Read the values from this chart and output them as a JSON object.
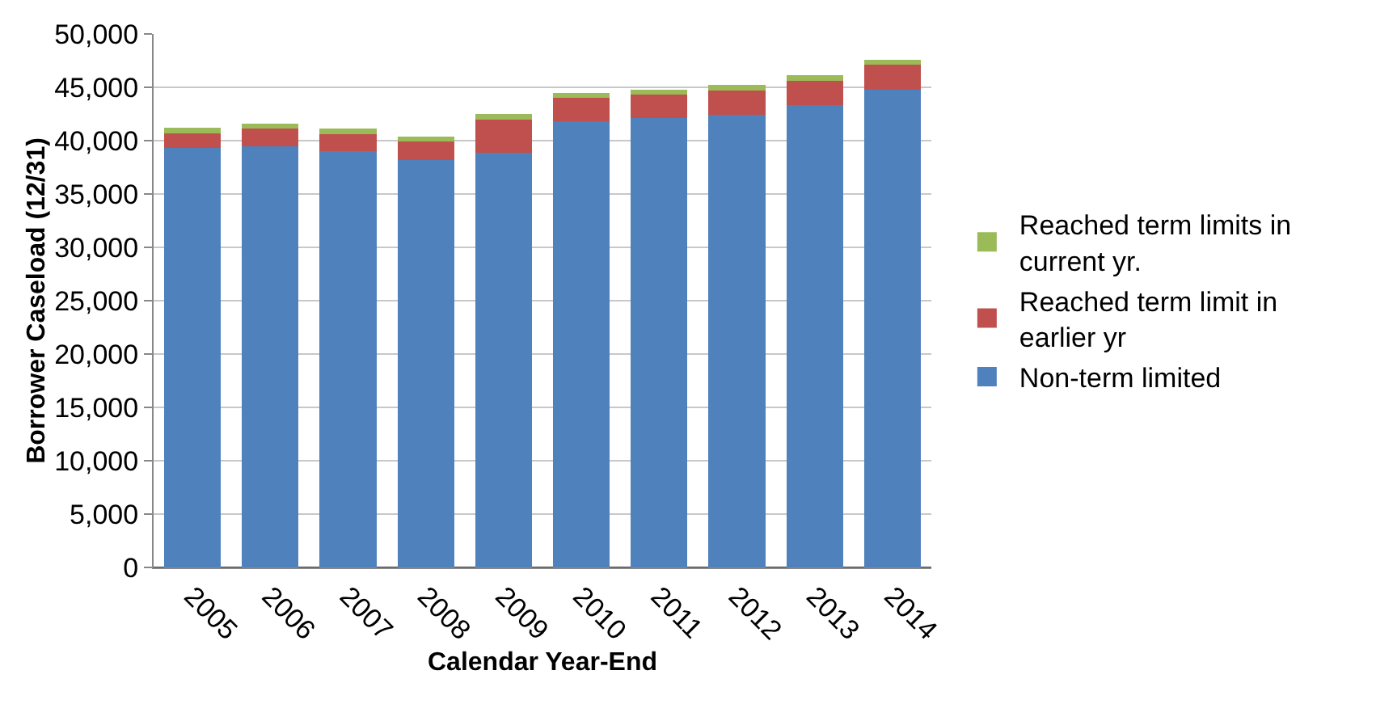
{
  "chart_data": {
    "type": "bar",
    "stacked": true,
    "categories": [
      "2005",
      "2006",
      "2007",
      "2008",
      "2009",
      "2010",
      "2011",
      "2012",
      "2013",
      "2014"
    ],
    "series": [
      {
        "name": "Non-term limited",
        "color": "#4f81bd",
        "values": [
          39300,
          39500,
          39000,
          38200,
          38900,
          41800,
          42100,
          42400,
          43300,
          44800
        ]
      },
      {
        "name": "Reached term limit in earlier yr",
        "color": "#c0504d",
        "values": [
          1400,
          1600,
          1600,
          1700,
          3100,
          2200,
          2200,
          2300,
          2300,
          2300
        ]
      },
      {
        "name": "Reached term limits in current yr.",
        "color": "#9bbb59",
        "values": [
          500,
          500,
          500,
          500,
          500,
          500,
          500,
          500,
          500,
          500
        ]
      }
    ],
    "xlabel": "Calendar Year-End",
    "ylabel": "Borrower Caseload (12/31)",
    "ylim": [
      0,
      50000
    ],
    "yticks": [
      {
        "value": 0,
        "label": "0"
      },
      {
        "value": 5000,
        "label": "5,000"
      },
      {
        "value": 10000,
        "label": "10,000"
      },
      {
        "value": 15000,
        "label": "15,000"
      },
      {
        "value": 20000,
        "label": "20,000"
      },
      {
        "value": 25000,
        "label": "25,000"
      },
      {
        "value": 30000,
        "label": "30,000"
      },
      {
        "value": 35000,
        "label": "35,000"
      },
      {
        "value": 40000,
        "label": "40,000"
      },
      {
        "value": 45000,
        "label": "45,000"
      },
      {
        "value": 50000,
        "label": "50,000"
      }
    ],
    "grid": "y",
    "legend": "right"
  }
}
